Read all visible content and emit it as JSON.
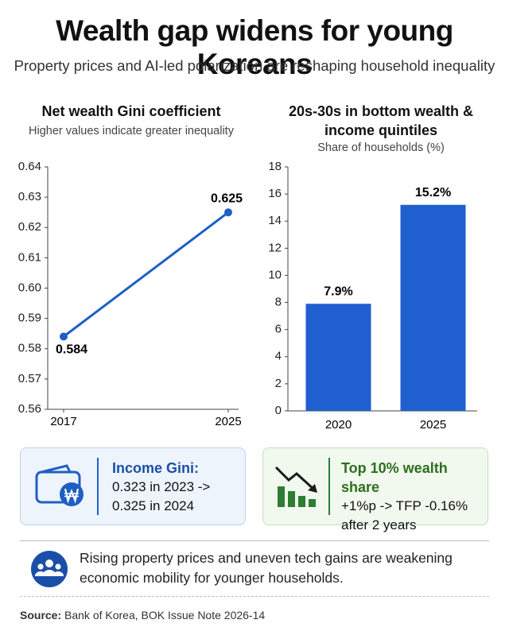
{
  "title": "Wealth gap widens for young Koreans",
  "subtitle": "Property prices and AI-led polarization are reshaping household inequality",
  "chart_data": [
    {
      "type": "line",
      "title": "Net wealth Gini coefficient",
      "subtitle": "Higher values indicate greater inequality",
      "categories": [
        "2017",
        "2025"
      ],
      "values": [
        0.584,
        0.625
      ],
      "color": "#1f5fc4",
      "ylim": [
        0.56,
        0.64
      ],
      "yticks": [
        0.56,
        0.57,
        0.58,
        0.59,
        {
          "value": 0.6,
          "label": "0.60"
        },
        0.61,
        0.62,
        0.63,
        0.64
      ],
      "grid": false
    },
    {
      "type": "bar",
      "title": "20s-30s in bottom wealth & income quintiles",
      "subtitle": "Share of households (%)",
      "categories": [
        "2020",
        "2025"
      ],
      "values": [
        7.9,
        15.2
      ],
      "value_labels": [
        "7.9%",
        "15.2%"
      ],
      "color": "#1f5fcf",
      "ylim": [
        0,
        18
      ],
      "yticks": [
        0,
        2,
        4,
        6,
        8,
        10,
        12,
        14,
        16,
        18
      ],
      "grid": false
    }
  ],
  "cards": [
    {
      "title": "Income Gini:",
      "lines": [
        "0.323 in 2023 ->",
        "0.325 in 2024"
      ]
    },
    {
      "title": "Top 10% wealth share",
      "lines": [
        "+1%p -> TFP -0.16%",
        "after 2 years"
      ]
    }
  ],
  "note": "Rising property prices and uneven tech gains are weakening economic mobility for younger households.",
  "source": {
    "label": "Source:",
    "text": "Bank of Korea, BOK Issue Note 2026-14"
  }
}
